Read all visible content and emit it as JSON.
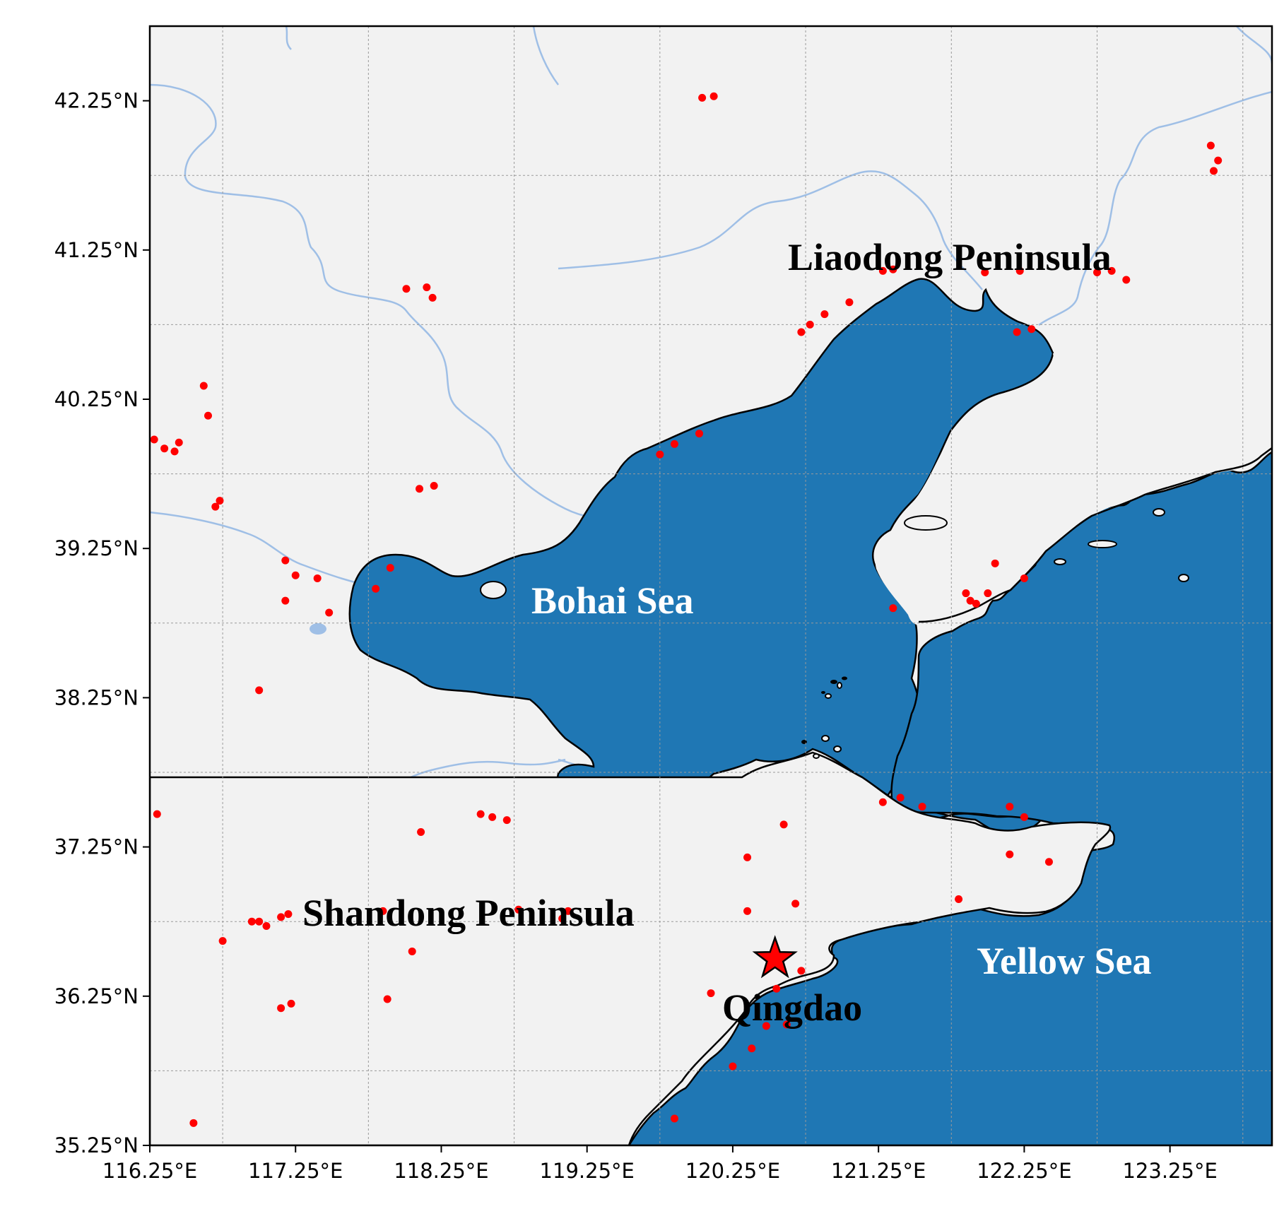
{
  "map": {
    "lon_range": [
      116.25,
      123.95
    ],
    "lat_range": [
      35.25,
      42.75
    ],
    "lat_ticks": [
      "42.25°N",
      "41.25°N",
      "40.25°N",
      "39.25°N",
      "38.25°N",
      "37.25°N",
      "36.25°N",
      "35.25°N"
    ],
    "lon_ticks": [
      "116.25°E",
      "117.25°E",
      "118.25°E",
      "119.25°E",
      "120.25°E",
      "121.25°E",
      "122.25°E",
      "123.25°E"
    ],
    "colors": {
      "land": "#f2f2f2",
      "sea": "#1f77b4",
      "river": "#9fbfe6",
      "coastline": "#000000",
      "station": "#ff0000",
      "grid": "#9a9a9a"
    },
    "labels": {
      "liaodong": "Liaodong Peninsula",
      "bohai": "Bohai Sea",
      "shandong": "Shandong Peninsula",
      "yellow": "Yellow Sea",
      "qingdao": "Qingdao"
    },
    "label_colors": {
      "liaodong": "#000000",
      "bohai": "#ffffff",
      "shandong": "#000000",
      "yellow": "#ffffff",
      "qingdao": "#000000"
    },
    "icons": {
      "station": "dot-icon",
      "qingdao": "star-icon"
    },
    "qingdao_marker": {
      "lon": 120.54,
      "lat": 36.5
    },
    "stations": [
      [
        120.04,
        42.27
      ],
      [
        120.12,
        42.28
      ],
      [
        118.01,
        40.99
      ],
      [
        118.15,
        41.0
      ],
      [
        118.19,
        40.93
      ],
      [
        116.62,
        40.34
      ],
      [
        116.65,
        40.14
      ],
      [
        116.28,
        39.98
      ],
      [
        116.35,
        39.92
      ],
      [
        116.45,
        39.96
      ],
      [
        116.42,
        39.9
      ],
      [
        116.7,
        39.53
      ],
      [
        116.73,
        39.57
      ],
      [
        118.1,
        39.65
      ],
      [
        118.2,
        39.67
      ],
      [
        117.18,
        39.17
      ],
      [
        117.25,
        39.07
      ],
      [
        117.4,
        39.05
      ],
      [
        117.18,
        38.9
      ],
      [
        117.48,
        38.82
      ],
      [
        117.9,
        39.12
      ],
      [
        117.8,
        38.98
      ],
      [
        117.0,
        38.3
      ],
      [
        116.3,
        37.47
      ],
      [
        118.11,
        37.35
      ],
      [
        118.52,
        37.47
      ],
      [
        118.6,
        37.45
      ],
      [
        118.7,
        37.43
      ],
      [
        116.75,
        36.62
      ],
      [
        116.95,
        36.75
      ],
      [
        117.05,
        36.72
      ],
      [
        117.15,
        36.78
      ],
      [
        117.2,
        36.8
      ],
      [
        117.0,
        36.75
      ],
      [
        117.85,
        36.82
      ],
      [
        118.05,
        36.55
      ],
      [
        117.88,
        36.23
      ],
      [
        117.15,
        36.17
      ],
      [
        117.22,
        36.2
      ],
      [
        116.55,
        35.4
      ],
      [
        118.78,
        36.83
      ],
      [
        119.08,
        36.77
      ],
      [
        119.12,
        36.82
      ],
      [
        119.85,
        35.43
      ],
      [
        119.75,
        39.88
      ],
      [
        119.85,
        39.95
      ],
      [
        120.02,
        40.02
      ],
      [
        120.72,
        40.7
      ],
      [
        120.78,
        40.75
      ],
      [
        120.88,
        40.82
      ],
      [
        121.05,
        40.9
      ],
      [
        121.28,
        41.11
      ],
      [
        121.35,
        41.12
      ],
      [
        121.98,
        41.1
      ],
      [
        122.22,
        41.11
      ],
      [
        122.2,
        40.7
      ],
      [
        122.3,
        40.72
      ],
      [
        122.75,
        41.1
      ],
      [
        122.85,
        41.11
      ],
      [
        122.95,
        41.05
      ],
      [
        123.53,
        41.95
      ],
      [
        123.58,
        41.85
      ],
      [
        123.55,
        41.78
      ],
      [
        121.35,
        38.85
      ],
      [
        121.85,
        38.95
      ],
      [
        121.88,
        38.9
      ],
      [
        121.92,
        38.88
      ],
      [
        122.0,
        38.95
      ],
      [
        122.05,
        39.15
      ],
      [
        122.25,
        39.05
      ],
      [
        121.28,
        37.55
      ],
      [
        121.4,
        37.58
      ],
      [
        121.55,
        37.52
      ],
      [
        122.15,
        37.52
      ],
      [
        122.25,
        37.45
      ],
      [
        122.15,
        37.2
      ],
      [
        122.42,
        37.15
      ],
      [
        120.6,
        37.4
      ],
      [
        120.35,
        37.18
      ],
      [
        120.35,
        36.82
      ],
      [
        120.68,
        36.87
      ],
      [
        121.8,
        36.9
      ],
      [
        120.55,
        36.3
      ],
      [
        120.62,
        36.06
      ],
      [
        120.48,
        36.05
      ],
      [
        120.38,
        35.9
      ],
      [
        120.25,
        35.78
      ],
      [
        120.1,
        36.27
      ],
      [
        120.72,
        36.42
      ]
    ]
  }
}
